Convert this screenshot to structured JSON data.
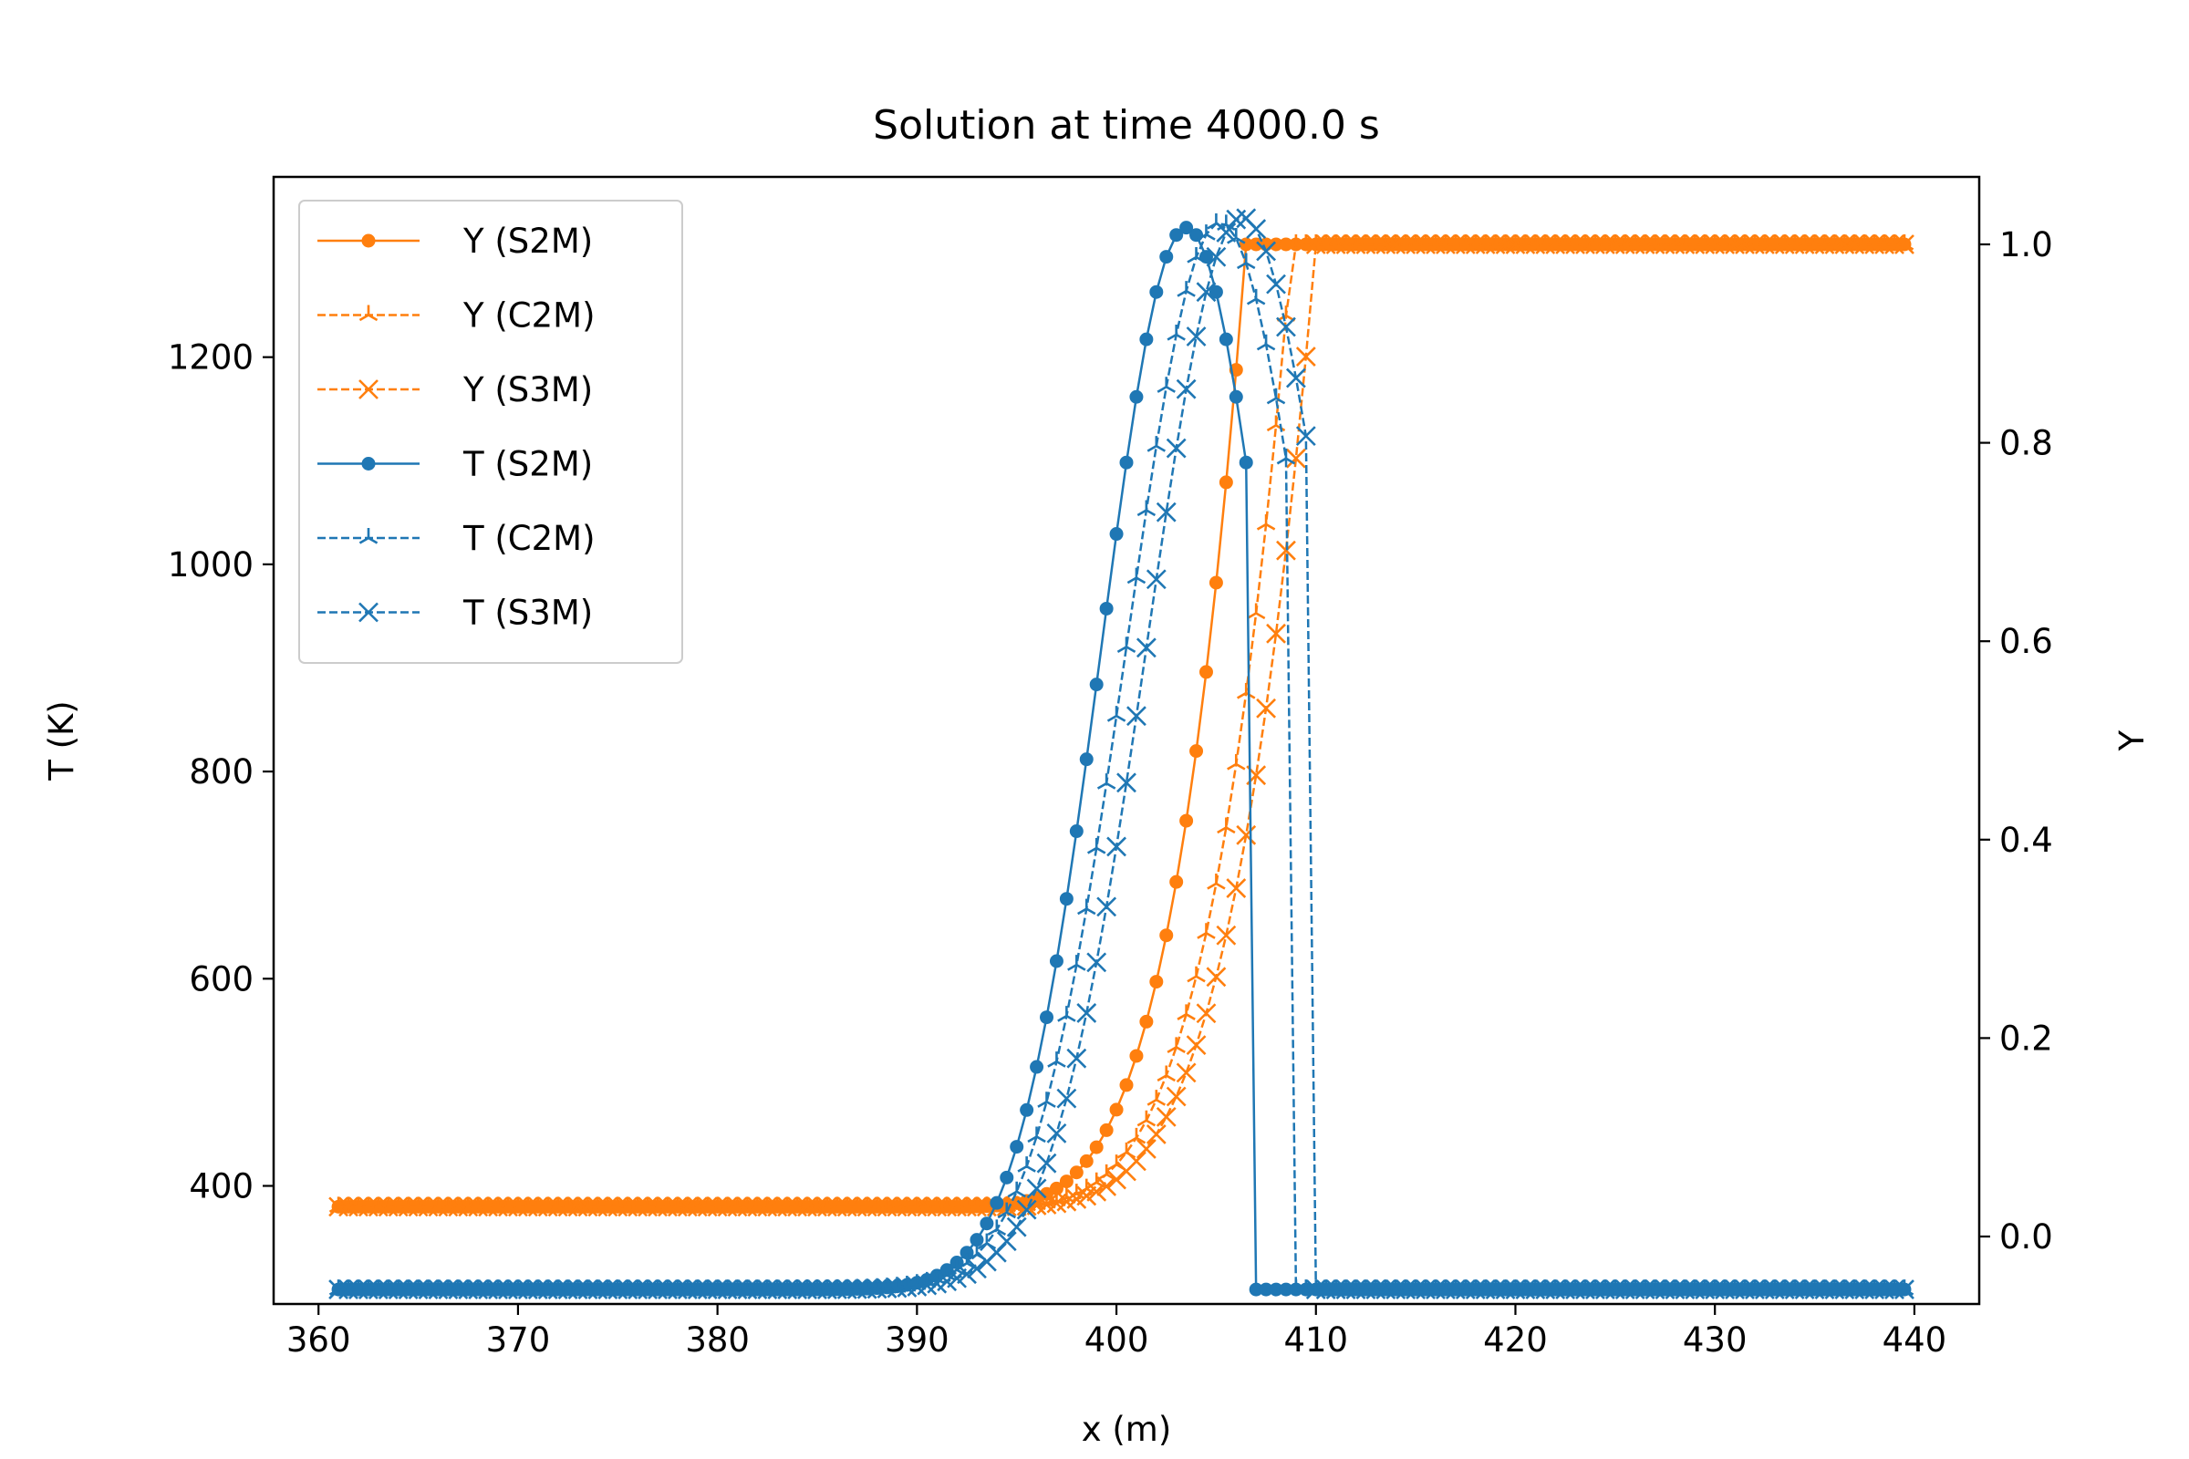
{
  "chart_data": {
    "type": "line",
    "title": "Solution at time 4000.0 s",
    "xlabel": "x (m)",
    "ylabel_left": "T (K)",
    "ylabel_right": "Y",
    "xlim": [
      357.75,
      443.25
    ],
    "ylim_left": [
      286,
      1374
    ],
    "ylim_right": [
      -0.068,
      1.068
    ],
    "xticks": [
      360,
      370,
      380,
      390,
      400,
      410,
      420,
      430,
      440
    ],
    "yticks_left": [
      400,
      600,
      800,
      1000,
      1200
    ],
    "yticks_right": [
      0.0,
      0.2,
      0.4,
      0.6,
      0.8,
      1.0
    ],
    "ytick_labels_right": [
      "0.0",
      "0.2",
      "0.4",
      "0.6",
      "0.8",
      "1.0"
    ],
    "x_range": [
      361.0,
      439.5
    ],
    "legend_position": "upper-left",
    "colors": {
      "Y": "#ff7f0e",
      "T": "#1f77b4"
    },
    "series": [
      {
        "name": "Y (S2M)",
        "label": "Y (S2M)",
        "var": "Y",
        "axis": "right",
        "scheme": "S2M",
        "marker": "circle",
        "dashed": false,
        "dx": 0.5,
        "profile": {
          "base": 0.03,
          "peak": 1.0,
          "t0": 390.5,
          "tf": 406.5,
          "x_eps": 407.0,
          "p": 4.4
        }
      },
      {
        "name": "Y (C2M)",
        "label": "Y (C2M)",
        "var": "Y",
        "axis": "right",
        "scheme": "C2M",
        "marker": "tri",
        "dashed": true,
        "dx": 0.5,
        "profile": {
          "base": 0.03,
          "peak": 1.0,
          "t0": 391.5,
          "tf": 408.8,
          "x_eps": 409.0,
          "p": 4.4
        }
      },
      {
        "name": "Y (S3M)",
        "label": "Y (S3M)",
        "var": "Y",
        "axis": "right",
        "scheme": "S3M",
        "marker": "x",
        "dashed": true,
        "dx": 0.5,
        "profile": {
          "base": 0.03,
          "peak": 1.0,
          "t0": 392.0,
          "tf": 410.0,
          "x_eps": 410.0,
          "p": 4.4
        }
      },
      {
        "name": "T (S2M)",
        "label": "T (S2M)",
        "var": "T",
        "axis": "left",
        "scheme": "S2M",
        "marker": "circle",
        "dashed": false,
        "dx": 0.5,
        "profile": {
          "base": 300,
          "peak": 1325,
          "x_peak": 403.5,
          "w": 6.0,
          "x_drop": 406.5,
          "x_end": 407.0
        }
      },
      {
        "name": "T (C2M)",
        "label": "T (C2M)",
        "var": "T",
        "axis": "left",
        "scheme": "C2M",
        "marker": "tri",
        "dashed": true,
        "dx": 0.5,
        "profile": {
          "base": 300,
          "peak": 1330,
          "x_peak": 405.2,
          "w": 6.6,
          "x_drop": 408.5,
          "x_end": 409.0
        }
      },
      {
        "name": "T (S3M)",
        "label": "T (S3M)",
        "var": "T",
        "axis": "left",
        "scheme": "S3M",
        "marker": "x",
        "dashed": true,
        "dx": 0.5,
        "profile": {
          "base": 300,
          "peak": 1335,
          "x_peak": 406.3,
          "w": 6.7,
          "x_drop": 409.5,
          "x_end": 410.0
        }
      }
    ]
  }
}
